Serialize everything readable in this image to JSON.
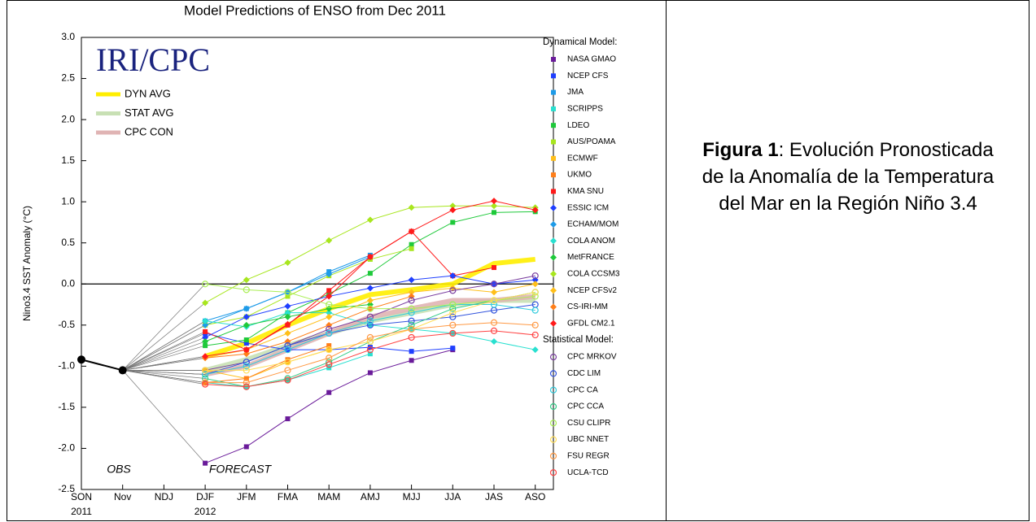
{
  "chart_data": {
    "type": "line",
    "title": "Model Predictions of ENSO from Dec 2011",
    "y_label": "Nino3.4 SST Anomaly (°C)",
    "watermark": "IRI/CPC",
    "annotations": [
      "OBS",
      "FORECAST"
    ],
    "categories": [
      "SON",
      "Nov",
      "NDJ",
      "DJF",
      "JFM",
      "FMA",
      "MAM",
      "AMJ",
      "MJJ",
      "JJA",
      "JAS",
      "ASO"
    ],
    "category_years": [
      "2011",
      null,
      null,
      "2012",
      null,
      null,
      null,
      null,
      null,
      null,
      null,
      null
    ],
    "ylim": [
      -2.5,
      3.0
    ],
    "yticks": [
      {
        "value": 3.0,
        "label": "3.0"
      },
      2.5,
      {
        "value": 2.0,
        "label": "2.0"
      },
      1.5,
      {
        "value": 1.0,
        "label": "1.0"
      },
      0.5,
      {
        "value": 0.0,
        "label": "0.0"
      },
      -0.5,
      {
        "value": -1.0,
        "label": "-1.0"
      },
      -1.5,
      {
        "value": -2.0,
        "label": "-2.0"
      },
      -2.5
    ],
    "zero_line": true,
    "observed": {
      "color": "#000000",
      "values": [
        -0.92,
        -1.05,
        null,
        null,
        null,
        null,
        null,
        null,
        null,
        null,
        null,
        null
      ]
    },
    "averages": [
      {
        "name": "DYN AVG",
        "color": "#ffee00",
        "values": [
          null,
          null,
          null,
          -0.88,
          -0.72,
          -0.5,
          -0.3,
          -0.13,
          -0.07,
          0.0,
          0.25,
          0.3
        ]
      },
      {
        "name": "STAT AVG",
        "color": "#c8e0b4",
        "values": [
          null,
          null,
          null,
          -1.05,
          -0.92,
          -0.75,
          -0.6,
          -0.45,
          -0.35,
          -0.25,
          -0.2,
          -0.2
        ]
      },
      {
        "name": "CPC CON",
        "color": "#e0b4b4",
        "values": [
          null,
          null,
          null,
          -1.1,
          -1.0,
          -0.8,
          -0.6,
          -0.4,
          -0.3,
          -0.2,
          -0.2,
          -0.15
        ]
      }
    ],
    "series_groups": [
      {
        "name": "Dynamical Model:",
        "series": [
          {
            "name": "NASA GMAO",
            "color": "#6a1b9a",
            "marker": "square",
            "values": [
              null,
              null,
              null,
              -2.18,
              -1.98,
              -1.64,
              -1.32,
              -1.08,
              -0.93,
              -0.8,
              null,
              null
            ]
          },
          {
            "name": "NCEP CFS",
            "color": "#1f3fff",
            "marker": "square",
            "values": [
              null,
              null,
              null,
              -0.6,
              -0.72,
              -0.8,
              -0.8,
              -0.77,
              -0.82,
              -0.78,
              null,
              null
            ]
          },
          {
            "name": "JMA",
            "color": "#1e9be8",
            "marker": "square",
            "values": [
              null,
              null,
              null,
              -0.45,
              -0.3,
              -0.1,
              0.15,
              0.35,
              null,
              null,
              null,
              null
            ]
          },
          {
            "name": "SCRIPPS",
            "color": "#29e0d0",
            "marker": "square",
            "values": [
              null,
              null,
              null,
              -1.2,
              -1.25,
              -1.17,
              -1.02,
              -0.85,
              null,
              null,
              null,
              null
            ]
          },
          {
            "name": "LDEO",
            "color": "#1ec93a",
            "marker": "square",
            "values": [
              null,
              null,
              null,
              -0.75,
              -0.68,
              -0.35,
              -0.12,
              0.13,
              0.48,
              0.75,
              0.87,
              0.88
            ]
          },
          {
            "name": "AUS/POAMA",
            "color": "#a8e61e",
            "marker": "square",
            "values": [
              null,
              null,
              null,
              -0.5,
              -0.4,
              -0.15,
              0.1,
              0.3,
              0.43,
              null,
              null,
              null
            ]
          },
          {
            "name": "ECMWF",
            "color": "#ffbf1a",
            "marker": "square",
            "values": [
              null,
              null,
              null,
              -1.05,
              -1.15,
              -0.95,
              -0.8,
              null,
              null,
              null,
              null,
              null
            ]
          },
          {
            "name": "UKMO",
            "color": "#ff7f1a",
            "marker": "square",
            "values": [
              null,
              null,
              null,
              -1.2,
              -1.15,
              -0.92,
              -0.75,
              null,
              null,
              null,
              null,
              null
            ]
          },
          {
            "name": "KMA SNU",
            "color": "#ff1a1a",
            "marker": "square",
            "values": [
              null,
              null,
              null,
              -0.58,
              -0.8,
              -0.5,
              -0.08,
              0.33,
              0.64,
              0.1,
              0.2,
              null
            ]
          },
          {
            "name": "ESSIC ICM",
            "color": "#1f3fff",
            "marker": "diamond",
            "values": [
              null,
              null,
              null,
              -0.65,
              -0.4,
              -0.27,
              -0.15,
              -0.05,
              0.05,
              0.1,
              0.0,
              0.05
            ]
          },
          {
            "name": "ECHAM/MOM",
            "color": "#1e9be8",
            "marker": "diamond",
            "values": [
              null,
              null,
              null,
              -0.5,
              -0.3,
              -0.1,
              0.12,
              0.33,
              null,
              null,
              null,
              null
            ]
          },
          {
            "name": "COLA ANOM",
            "color": "#29e0d0",
            "marker": "diamond",
            "values": [
              null,
              null,
              null,
              -0.45,
              -0.52,
              -0.35,
              -0.35,
              -0.5,
              -0.55,
              -0.6,
              -0.7,
              -0.8
            ]
          },
          {
            "name": "MetFRANCE",
            "color": "#1ec93a",
            "marker": "diamond",
            "values": [
              null,
              null,
              null,
              -0.7,
              -0.5,
              -0.4,
              -0.3,
              -0.25,
              null,
              null,
              null,
              null
            ]
          },
          {
            "name": "COLA CCSM3",
            "color": "#a8e61e",
            "marker": "diamond",
            "values": [
              null,
              null,
              null,
              -0.23,
              0.05,
              0.26,
              0.53,
              0.78,
              0.93,
              0.95,
              0.95,
              0.93
            ]
          },
          {
            "name": "NCEP CFSv2",
            "color": "#ffbf1a",
            "marker": "diamond",
            "values": [
              null,
              null,
              null,
              -0.9,
              -0.8,
              -0.6,
              -0.4,
              -0.2,
              -0.1,
              -0.05,
              -0.1,
              0.0
            ]
          },
          {
            "name": "CS-IRI-MM",
            "color": "#ff7f1a",
            "marker": "diamond",
            "values": [
              null,
              null,
              null,
              -0.9,
              -0.85,
              -0.7,
              -0.5,
              -0.3,
              -0.15,
              null,
              null,
              null
            ]
          },
          {
            "name": "GFDL CM2.1",
            "color": "#ff1a1a",
            "marker": "diamond",
            "values": [
              null,
              null,
              null,
              -0.88,
              -0.8,
              -0.49,
              -0.15,
              0.33,
              0.64,
              0.9,
              1.01,
              0.9
            ]
          }
        ]
      },
      {
        "name": "Statistical Model:",
        "series": [
          {
            "name": "CPC MRKOV",
            "color": "#7b3fa0",
            "marker": "circle",
            "values": [
              null,
              null,
              null,
              -1.05,
              -0.95,
              -0.75,
              -0.55,
              -0.4,
              -0.2,
              -0.08,
              0.0,
              0.1
            ]
          },
          {
            "name": "CDC LIM",
            "color": "#3355dd",
            "marker": "circle",
            "values": [
              null,
              null,
              null,
              -1.1,
              -0.95,
              -0.75,
              -0.6,
              -0.5,
              -0.45,
              -0.4,
              -0.32,
              -0.25
            ]
          },
          {
            "name": "CPC CA",
            "color": "#33ccdd",
            "marker": "circle",
            "values": [
              null,
              null,
              null,
              -1.1,
              -1.0,
              -0.8,
              -0.6,
              -0.45,
              -0.35,
              -0.25,
              -0.25,
              -0.32
            ]
          },
          {
            "name": "CPC CCA",
            "color": "#33cc88",
            "marker": "circle",
            "values": [
              null,
              null,
              null,
              -1.15,
              -1.25,
              -1.15,
              -0.95,
              -0.7,
              -0.5,
              -0.3,
              -0.2,
              -0.1
            ]
          },
          {
            "name": "CSU CLIPR",
            "color": "#aaee55",
            "marker": "circle",
            "values": [
              null,
              null,
              null,
              0.0,
              -0.07,
              -0.1,
              -0.25,
              -0.3,
              -0.3,
              -0.25,
              -0.2,
              -0.15
            ]
          },
          {
            "name": "UBC NNET",
            "color": "#ffdd55",
            "marker": "circle",
            "values": [
              null,
              null,
              null,
              -1.05,
              -1.05,
              -0.95,
              -0.8,
              -0.7,
              -0.55,
              -0.35,
              -0.2,
              -0.1
            ]
          },
          {
            "name": "FSU REGR",
            "color": "#ff9944",
            "marker": "circle",
            "values": [
              null,
              null,
              null,
              -1.2,
              -1.2,
              -1.05,
              -0.9,
              -0.65,
              -0.55,
              -0.5,
              -0.47,
              -0.5
            ]
          },
          {
            "name": "UCLA-TCD",
            "color": "#ff4444",
            "marker": "circle",
            "values": [
              null,
              null,
              null,
              -1.22,
              -1.25,
              -1.17,
              -0.98,
              -0.8,
              -0.65,
              -0.6,
              -0.57,
              -0.62
            ]
          }
        ]
      }
    ]
  },
  "caption": {
    "label": "Figura 1",
    "text": ": Evolución Pronosticada de la Anomalía de la Temperatura del Mar en la Región Niño 3.4"
  }
}
